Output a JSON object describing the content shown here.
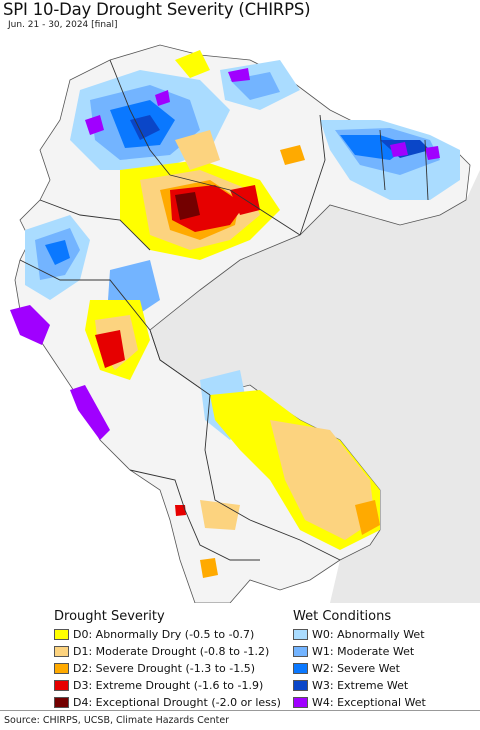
{
  "title": "SPI 10-Day Drought Severity (CHIRPS)",
  "subtitle": "Jun. 21 - 30, 2024 [final]",
  "colors": {
    "ocean": "#ffffff",
    "land_base": "#ffffff",
    "neighbor_land": "#e6e6e6",
    "border": "#3a3a3a"
  },
  "legend": {
    "drought": {
      "heading": "Drought Severity",
      "items": [
        {
          "label": "D0: Abnormally Dry (-0.5 to -0.7)",
          "color": "#ffff00"
        },
        {
          "label": "D1: Moderate Drought (-0.8 to -1.2)",
          "color": "#fcd37f"
        },
        {
          "label": "D2: Severe Drought (-1.3 to -1.5)",
          "color": "#ffaa00"
        },
        {
          "label": "D3: Extreme Drought (-1.6 to -1.9)",
          "color": "#e60000"
        },
        {
          "label": "D4: Exceptional Drought (-2.0 or less)",
          "color": "#730000"
        }
      ]
    },
    "wet": {
      "heading": "Wet Conditions",
      "items": [
        {
          "label": "W0: Abnormally Wet",
          "color": "#aadcff"
        },
        {
          "label": "W1: Moderate Wet",
          "color": "#73b4ff"
        },
        {
          "label": "W2: Severe Wet",
          "color": "#0a78ff"
        },
        {
          "label": "W3: Extreme Wet",
          "color": "#0a46c8"
        },
        {
          "label": "W4: Exceptional Wet",
          "color": "#a000ff"
        }
      ]
    }
  },
  "source": "Source: CHIRPS, UCSB, Climate Hazards Center"
}
